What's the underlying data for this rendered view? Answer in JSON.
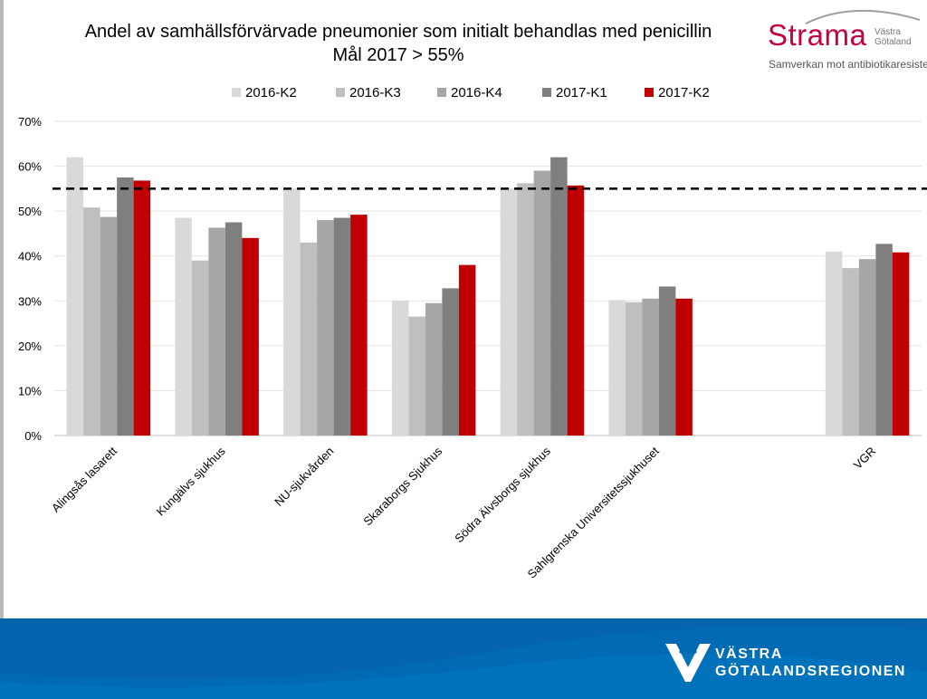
{
  "title": {
    "line1": "Andel av samhällsförvärvade pneumonier som initialt behandlas med penicillin",
    "line2": "Mål 2017 > 55%"
  },
  "logo": {
    "name": "Strama",
    "region": "Västra Götaland",
    "tagline": "Samverkan mot antibiotikaresistens"
  },
  "footer": {
    "org_line1": "VÄSTRA",
    "org_line2": "GÖTALANDSREGIONEN"
  },
  "colors": {
    "series": [
      "#d9d9d9",
      "#bfbfbf",
      "#a6a6a6",
      "#7f7f7f",
      "#c00000"
    ],
    "target_line": "#000000",
    "footer": "#006ab4"
  },
  "chart_data": {
    "type": "bar",
    "categories": [
      "Alingsås lasarett",
      "Kungälvs sjukhus",
      "NU-sjukvården",
      "Skaraborgs Sjukhus",
      "Södra Älvsborgs sjukhus",
      "Sahlgrenska Universitetssjukhuset",
      "",
      "VGR"
    ],
    "series": [
      {
        "name": "2016-K2",
        "values": [
          62,
          48.5,
          55,
          30,
          55,
          30.2,
          null,
          41
        ]
      },
      {
        "name": "2016-K3",
        "values": [
          50.8,
          39,
          43,
          26.5,
          56.2,
          29.7,
          null,
          37.3
        ]
      },
      {
        "name": "2016-K4",
        "values": [
          48.7,
          46.3,
          48,
          29.5,
          59,
          30.5,
          null,
          39.3
        ]
      },
      {
        "name": "2017-K1",
        "values": [
          57.5,
          47.5,
          48.5,
          32.8,
          62,
          33.2,
          null,
          42.7
        ]
      },
      {
        "name": "2017-K2",
        "values": [
          56.8,
          44,
          49.2,
          38,
          55.7,
          30.5,
          null,
          40.8
        ]
      }
    ],
    "target": 55,
    "ylim": [
      0,
      70
    ],
    "yticks": [
      0,
      10,
      20,
      30,
      40,
      50,
      60,
      70
    ],
    "tick_format": "%",
    "xlabel": "",
    "ylabel": "",
    "legend_position": "top",
    "grid": true
  }
}
